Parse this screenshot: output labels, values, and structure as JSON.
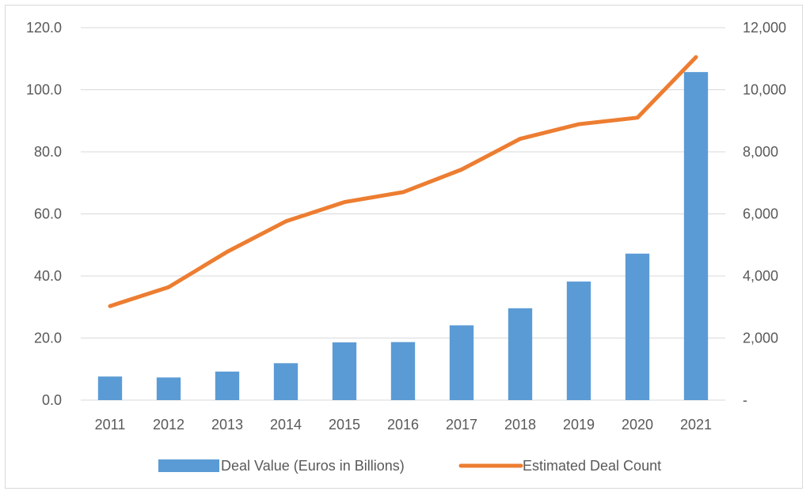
{
  "chart_data": {
    "type": "bar",
    "categories": [
      "2011",
      "2012",
      "2013",
      "2014",
      "2015",
      "2016",
      "2017",
      "2018",
      "2019",
      "2020",
      "2021"
    ],
    "series": [
      {
        "name": "Deal Value (Euros in Billions)",
        "type": "bar",
        "axis": "left",
        "color": "#5b9bd5",
        "values": [
          7.6,
          7.3,
          9.2,
          11.9,
          18.6,
          18.7,
          24.1,
          29.6,
          38.2,
          47.2,
          105.7
        ]
      },
      {
        "name": "Estimated Deal Count",
        "type": "line",
        "axis": "right",
        "color": "#ed7d31",
        "values": [
          3030,
          3640,
          4780,
          5760,
          6380,
          6700,
          7430,
          8420,
          8890,
          9100,
          11050
        ]
      }
    ],
    "y_left": {
      "ylim": [
        0,
        120
      ],
      "ticks": [
        "0.0",
        "20.0",
        "40.0",
        "60.0",
        "80.0",
        "100.0",
        "120.0"
      ]
    },
    "y_right": {
      "ylim": [
        0,
        12000
      ],
      "ticks": [
        "-",
        "2,000",
        "4,000",
        "6,000",
        "8,000",
        "10,000",
        "12,000"
      ]
    },
    "grid": true,
    "legend": "bottom",
    "title": "",
    "xlabel": "",
    "ylabel": ""
  }
}
